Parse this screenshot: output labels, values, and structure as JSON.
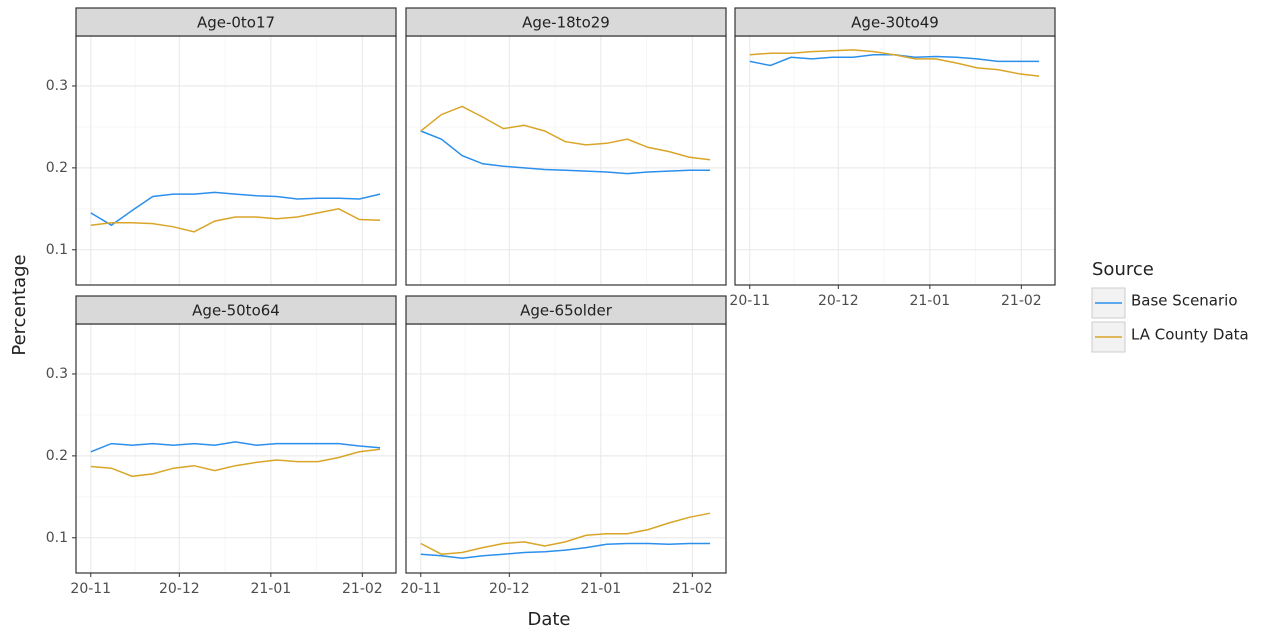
{
  "xlabel": "Date",
  "ylabel": "Percentage",
  "legend_title": "Source",
  "chart_data": [
    {
      "type": "line",
      "title": "Age-0to17",
      "x": [
        0,
        7,
        14,
        21,
        28,
        35,
        42,
        49,
        56,
        63,
        70,
        77,
        84,
        91,
        98
      ],
      "xlim": [
        -5,
        103.4
      ],
      "ylim": [
        0.057,
        0.361
      ],
      "xticks": [
        {
          "value": 0,
          "label": "20-11"
        },
        {
          "value": 30,
          "label": "20-12"
        },
        {
          "value": 61,
          "label": "21-01"
        },
        {
          "value": 92,
          "label": "21-02"
        }
      ],
      "yticks": [
        0.1,
        0.2,
        0.3
      ],
      "series": [
        {
          "name": "Base Scenario",
          "color": "#2b8fec",
          "values": [
            0.145,
            0.13,
            0.148,
            0.165,
            0.168,
            0.168,
            0.17,
            0.168,
            0.166,
            0.165,
            0.162,
            0.163,
            0.163,
            0.162,
            0.168
          ]
        },
        {
          "name": "LA County Data",
          "color": "#d9a528",
          "values": [
            0.13,
            0.133,
            0.133,
            0.132,
            0.128,
            0.122,
            0.135,
            0.14,
            0.14,
            0.138,
            0.14,
            0.145,
            0.15,
            0.137,
            0.136
          ]
        }
      ]
    },
    {
      "type": "line",
      "title": "Age-18to29",
      "x": [
        0,
        7,
        14,
        21,
        28,
        35,
        42,
        49,
        56,
        63,
        70,
        77,
        84,
        91,
        98
      ],
      "xlim": [
        -5,
        103.4
      ],
      "ylim": [
        0.057,
        0.361
      ],
      "xticks": [
        {
          "value": 0,
          "label": "20-11"
        },
        {
          "value": 30,
          "label": "20-12"
        },
        {
          "value": 61,
          "label": "21-01"
        },
        {
          "value": 92,
          "label": "21-02"
        }
      ],
      "yticks": [
        0.1,
        0.2,
        0.3
      ],
      "series": [
        {
          "name": "Base Scenario",
          "color": "#2b8fec",
          "values": [
            0.245,
            0.235,
            0.215,
            0.205,
            0.202,
            0.2,
            0.198,
            0.197,
            0.196,
            0.195,
            0.193,
            0.195,
            0.196,
            0.197,
            0.197
          ]
        },
        {
          "name": "LA County Data",
          "color": "#d9a528",
          "values": [
            0.245,
            0.265,
            0.275,
            0.262,
            0.248,
            0.252,
            0.245,
            0.232,
            0.228,
            0.23,
            0.235,
            0.225,
            0.22,
            0.213,
            0.21
          ]
        }
      ]
    },
    {
      "type": "line",
      "title": "Age-30to49",
      "x": [
        0,
        7,
        14,
        21,
        28,
        35,
        42,
        49,
        56,
        63,
        70,
        77,
        84,
        91,
        98
      ],
      "xlim": [
        -5,
        103.4
      ],
      "ylim": [
        0.057,
        0.361
      ],
      "xticks": [
        {
          "value": 0,
          "label": "20-11"
        },
        {
          "value": 30,
          "label": "20-12"
        },
        {
          "value": 61,
          "label": "21-01"
        },
        {
          "value": 92,
          "label": "21-02"
        }
      ],
      "yticks": [
        0.1,
        0.2,
        0.3
      ],
      "series": [
        {
          "name": "Base Scenario",
          "color": "#2b8fec",
          "values": [
            0.33,
            0.325,
            0.335,
            0.333,
            0.335,
            0.335,
            0.338,
            0.338,
            0.335,
            0.336,
            0.335,
            0.333,
            0.33,
            0.33,
            0.33
          ]
        },
        {
          "name": "LA County Data",
          "color": "#d9a528",
          "values": [
            0.338,
            0.34,
            0.34,
            0.342,
            0.343,
            0.344,
            0.342,
            0.338,
            0.333,
            0.333,
            0.328,
            0.322,
            0.32,
            0.315,
            0.312
          ]
        }
      ]
    },
    {
      "type": "line",
      "title": "Age-50to64",
      "x": [
        0,
        7,
        14,
        21,
        28,
        35,
        42,
        49,
        56,
        63,
        70,
        77,
        84,
        91,
        98
      ],
      "xlim": [
        -5,
        103.4
      ],
      "ylim": [
        0.057,
        0.361
      ],
      "xticks": [
        {
          "value": 0,
          "label": "20-11"
        },
        {
          "value": 30,
          "label": "20-12"
        },
        {
          "value": 61,
          "label": "21-01"
        },
        {
          "value": 92,
          "label": "21-02"
        }
      ],
      "yticks": [
        0.1,
        0.2,
        0.3
      ],
      "series": [
        {
          "name": "Base Scenario",
          "color": "#2b8fec",
          "values": [
            0.205,
            0.215,
            0.213,
            0.215,
            0.213,
            0.215,
            0.213,
            0.217,
            0.213,
            0.215,
            0.215,
            0.215,
            0.215,
            0.212,
            0.21
          ]
        },
        {
          "name": "LA County Data",
          "color": "#d9a528",
          "values": [
            0.187,
            0.185,
            0.175,
            0.178,
            0.185,
            0.188,
            0.182,
            0.188,
            0.192,
            0.195,
            0.193,
            0.193,
            0.198,
            0.205,
            0.208
          ]
        }
      ]
    },
    {
      "type": "line",
      "title": "Age-65older",
      "x": [
        0,
        7,
        14,
        21,
        28,
        35,
        42,
        49,
        56,
        63,
        70,
        77,
        84,
        91,
        98
      ],
      "xlim": [
        -5,
        103.4
      ],
      "ylim": [
        0.057,
        0.361
      ],
      "xticks": [
        {
          "value": 0,
          "label": "20-11"
        },
        {
          "value": 30,
          "label": "20-12"
        },
        {
          "value": 61,
          "label": "21-01"
        },
        {
          "value": 92,
          "label": "21-02"
        }
      ],
      "yticks": [
        0.1,
        0.2,
        0.3
      ],
      "series": [
        {
          "name": "Base Scenario",
          "color": "#2b8fec",
          "values": [
            0.08,
            0.078,
            0.075,
            0.078,
            0.08,
            0.082,
            0.083,
            0.085,
            0.088,
            0.092,
            0.093,
            0.093,
            0.092,
            0.093,
            0.093
          ]
        },
        {
          "name": "LA County Data",
          "color": "#d9a528",
          "values": [
            0.093,
            0.08,
            0.082,
            0.088,
            0.093,
            0.095,
            0.09,
            0.095,
            0.103,
            0.105,
            0.105,
            0.11,
            0.118,
            0.125,
            0.13
          ]
        }
      ]
    }
  ]
}
